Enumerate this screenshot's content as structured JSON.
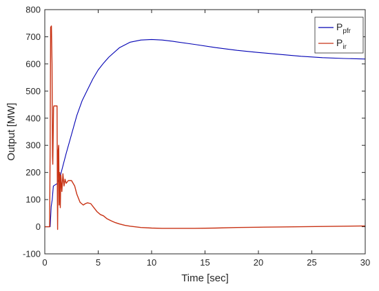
{
  "chart_data": {
    "type": "line",
    "xlabel": "Time [sec]",
    "ylabel": "Output [MW]",
    "xlim": [
      0,
      30
    ],
    "ylim": [
      -100,
      800
    ],
    "xticks": [
      0,
      5,
      10,
      15,
      20,
      25,
      30
    ],
    "yticks": [
      -100,
      0,
      100,
      200,
      300,
      400,
      500,
      600,
      700,
      800
    ],
    "grid": false,
    "legend": "top-right",
    "series": [
      {
        "name": "P",
        "sub": "pfr",
        "color": "#0000b4",
        "x": [
          0,
          0.5,
          0.6,
          0.7,
          0.8,
          1.0,
          1.2,
          1.5,
          2.0,
          2.5,
          3.0,
          3.5,
          4.0,
          4.5,
          5.0,
          5.5,
          6.0,
          7.0,
          8.0,
          9.0,
          10.0,
          11.0,
          12.0,
          14.0,
          16.0,
          18.0,
          20.0,
          22.0,
          24.0,
          26.0,
          28.0,
          30.0
        ],
        "y": [
          0,
          0,
          75,
          100,
          150,
          155,
          160,
          195,
          270,
          340,
          410,
          465,
          505,
          545,
          578,
          603,
          625,
          660,
          680,
          688,
          690,
          688,
          683,
          672,
          660,
          650,
          642,
          635,
          628,
          623,
          620,
          618
        ]
      },
      {
        "name": "P",
        "sub": "ir",
        "color": "#c83214",
        "x": [
          0,
          0.45,
          0.5,
          0.55,
          0.62,
          0.68,
          0.72,
          0.75,
          0.78,
          0.82,
          0.85,
          0.9,
          1.15,
          1.18,
          1.2,
          1.25,
          1.3,
          1.35,
          1.4,
          1.45,
          1.5,
          1.6,
          1.7,
          1.8,
          1.9,
          2.0,
          2.2,
          2.5,
          2.8,
          3.0,
          3.3,
          3.6,
          3.8,
          4.0,
          4.3,
          4.6,
          4.9,
          5.2,
          5.5,
          5.8,
          6.2,
          6.6,
          7.0,
          7.5,
          8.0,
          9.0,
          10.0,
          11.0,
          12.0,
          14.0,
          16.0,
          18.0,
          20.0,
          22.0,
          24.0,
          26.0,
          28.0,
          30.0
        ],
        "y": [
          0,
          0,
          300,
          735,
          740,
          600,
          260,
          230,
          320,
          440,
          445,
          445,
          445,
          100,
          -10,
          280,
          300,
          80,
          200,
          70,
          190,
          130,
          195,
          150,
          175,
          160,
          170,
          170,
          150,
          120,
          90,
          80,
          85,
          88,
          85,
          70,
          55,
          45,
          40,
          30,
          22,
          15,
          10,
          5,
          2,
          -3,
          -5,
          -6,
          -6,
          -6,
          -5,
          -3,
          -2,
          -1,
          0,
          1,
          2,
          3
        ]
      }
    ]
  }
}
